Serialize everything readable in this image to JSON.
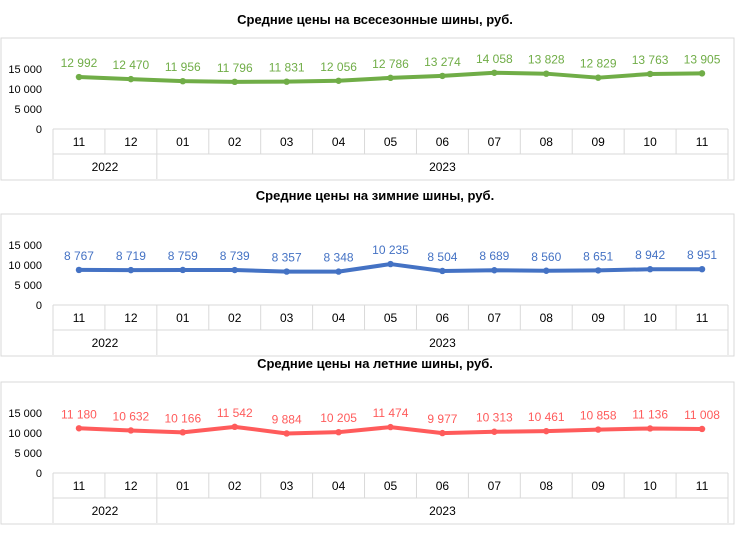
{
  "chart_data": [
    {
      "type": "line",
      "title": "Средние цены на всесезонные шины, руб.",
      "categories": [
        "11",
        "12",
        "01",
        "02",
        "03",
        "04",
        "05",
        "06",
        "07",
        "08",
        "09",
        "10",
        "11"
      ],
      "year_groups": [
        {
          "label": "2022",
          "span": [
            0,
            1
          ]
        },
        {
          "label": "2023",
          "span": [
            2,
            12
          ]
        }
      ],
      "series": [
        {
          "values": [
            12992,
            12470,
            11956,
            11796,
            11831,
            12056,
            12786,
            13274,
            14058,
            13828,
            12829,
            13763,
            13905
          ],
          "labels": [
            "12 992",
            "12 470",
            "11 956",
            "11 796",
            "11 831",
            "12 056",
            "12 786",
            "13 274",
            "14 058",
            "13 828",
            "12 829",
            "13 763",
            "13 905"
          ],
          "color": "#70ad47"
        }
      ],
      "yticks": [
        0,
        5000,
        10000,
        15000
      ],
      "ytick_labels": [
        "0",
        "5 000",
        "10 000",
        "15 000"
      ],
      "ylim": [
        0,
        15000
      ],
      "grid": false,
      "legend": "none"
    },
    {
      "type": "line",
      "title": "Средние цены на зимние шины, руб.",
      "categories": [
        "11",
        "12",
        "01",
        "02",
        "03",
        "04",
        "05",
        "06",
        "07",
        "08",
        "09",
        "10",
        "11"
      ],
      "year_groups": [
        {
          "label": "2022",
          "span": [
            0,
            1
          ]
        },
        {
          "label": "2023",
          "span": [
            2,
            12
          ]
        }
      ],
      "series": [
        {
          "values": [
            8767,
            8719,
            8759,
            8739,
            8357,
            8348,
            10235,
            8504,
            8689,
            8560,
            8651,
            8942,
            8951
          ],
          "labels": [
            "8 767",
            "8 719",
            "8 759",
            "8 739",
            "8 357",
            "8 348",
            "10 235",
            "8 504",
            "8 689",
            "8 560",
            "8 651",
            "8 942",
            "8 951"
          ],
          "color": "#4472c4"
        }
      ],
      "yticks": [
        0,
        5000,
        10000,
        15000
      ],
      "ytick_labels": [
        "0",
        "5 000",
        "10 000",
        "15 000"
      ],
      "ylim": [
        0,
        15000
      ],
      "grid": false,
      "legend": "none"
    },
    {
      "type": "line",
      "title": "Средние цены на летние шины, руб.",
      "categories": [
        "11",
        "12",
        "01",
        "02",
        "03",
        "04",
        "05",
        "06",
        "07",
        "08",
        "09",
        "10",
        "11"
      ],
      "year_groups": [
        {
          "label": "2022",
          "span": [
            0,
            1
          ]
        },
        {
          "label": "2023",
          "span": [
            2,
            12
          ]
        }
      ],
      "series": [
        {
          "values": [
            11180,
            10632,
            10166,
            11542,
            9884,
            10205,
            11474,
            9977,
            10313,
            10461,
            10858,
            11136,
            11008
          ],
          "labels": [
            "11 180",
            "10 632",
            "10 166",
            "11 542",
            "9 884",
            "10 205",
            "11 474",
            "9 977",
            "10 313",
            "10 461",
            "10 858",
            "11 136",
            "11 008"
          ],
          "color": "#ff5b5b"
        }
      ],
      "yticks": [
        0,
        5000,
        10000,
        15000
      ],
      "ytick_labels": [
        "0",
        "5 000",
        "10 000",
        "15 000"
      ],
      "ylim": [
        0,
        15000
      ],
      "grid": false,
      "legend": "none"
    }
  ]
}
